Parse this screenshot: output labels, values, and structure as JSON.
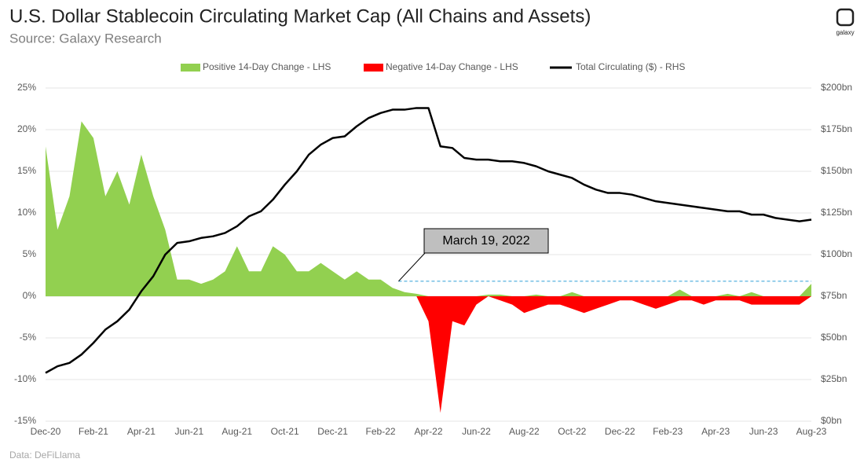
{
  "chart_data": {
    "type": "area-line",
    "title": "U.S. Dollar Stablecoin Circulating Market Cap (All Chains and Assets)",
    "subtitle": "Source: Galaxy Research",
    "source": "Data: DeFiLlama",
    "logo": "galaxy",
    "annotation": {
      "text": "March 19, 2022",
      "value": 1.8
    },
    "categories": [
      "Dec-20",
      null,
      null,
      null,
      "Feb-21",
      null,
      null,
      null,
      "Apr-21",
      null,
      null,
      null,
      "Jun-21",
      null,
      null,
      null,
      "Aug-21",
      null,
      null,
      null,
      "Oct-21",
      null,
      null,
      null,
      "Dec-21",
      null,
      null,
      null,
      "Feb-22",
      null,
      null,
      null,
      "Apr-22",
      null,
      null,
      null,
      "Jun-22",
      null,
      null,
      null,
      "Aug-22",
      null,
      null,
      null,
      "Oct-22",
      null,
      null,
      null,
      "Dec-22",
      null,
      null,
      null,
      "Feb-23",
      null,
      null,
      null,
      "Apr-23",
      null,
      null,
      null,
      "Jun-23",
      null,
      null,
      null,
      "Aug-23"
    ],
    "series": [
      {
        "name": "Positive 14-Day Change - LHS",
        "color": "#92d050",
        "values": [
          18,
          8,
          12,
          21,
          19,
          12,
          15,
          11,
          17,
          12,
          8,
          2,
          2,
          1.5,
          2,
          3,
          6,
          3,
          3,
          6,
          5,
          3,
          3,
          4,
          3,
          2,
          3,
          2,
          2,
          1,
          0.5,
          0.3,
          0,
          0,
          0,
          0,
          0,
          0.2,
          0.2,
          0,
          0,
          0.2,
          0,
          0,
          0.5,
          0,
          0,
          0,
          0,
          0,
          0,
          0,
          0,
          0.8,
          0,
          0,
          0,
          0.3,
          0,
          0.5,
          0,
          0,
          0,
          0,
          1.5
        ]
      },
      {
        "name": "Negative 14-Day Change - LHS",
        "color": "#ff0000",
        "values": [
          0,
          0,
          0,
          0,
          0,
          0,
          0,
          0,
          0,
          0,
          0,
          0,
          0,
          0,
          0,
          0,
          0,
          0,
          0,
          0,
          0,
          0,
          0,
          0,
          0,
          0,
          0,
          0,
          0,
          0,
          0,
          0,
          -3,
          -14,
          -3,
          -3.5,
          -1,
          0,
          -0.5,
          -1,
          -2,
          -1.5,
          -1,
          -1,
          -1.5,
          -2,
          -1.5,
          -1,
          -0.5,
          -0.5,
          -1,
          -1.5,
          -1,
          -0.5,
          -0.5,
          -1,
          -0.5,
          -0.5,
          -0.5,
          -1,
          -1,
          -1,
          -1,
          -1,
          0
        ]
      },
      {
        "name": "Total Circulating ($) - RHS",
        "color": "#000000",
        "axis": "y2",
        "values": [
          29,
          33,
          35,
          40,
          47,
          55,
          60,
          67,
          78,
          87,
          100,
          107,
          108,
          110,
          111,
          113,
          117,
          123,
          126,
          133,
          142,
          150,
          160,
          166,
          170,
          171,
          177,
          182,
          185,
          187,
          187,
          188,
          188,
          165,
          164,
          158,
          157,
          157,
          156,
          156,
          155,
          153,
          150,
          148,
          146,
          142,
          139,
          137,
          137,
          136,
          134,
          132,
          131,
          130,
          129,
          128,
          127,
          126,
          126,
          124,
          124,
          122,
          121,
          120,
          121
        ]
      }
    ],
    "ylim": [
      -15,
      25
    ],
    "yticks": [
      {
        "value": -15,
        "label": "-15%"
      },
      {
        "value": -10,
        "label": "-10%"
      },
      {
        "value": -5,
        "label": "-5%"
      },
      {
        "value": 0,
        "label": "0%"
      },
      {
        "value": 5,
        "label": "5%"
      },
      {
        "value": 10,
        "label": "10%"
      },
      {
        "value": 15,
        "label": "15%"
      },
      {
        "value": 20,
        "label": "20%"
      },
      {
        "value": 25,
        "label": "25%"
      }
    ],
    "y2lim": [
      0,
      200
    ],
    "y2ticks": [
      {
        "value": 0,
        "label": "$0bn"
      },
      {
        "value": 25,
        "label": "$25bn"
      },
      {
        "value": 50,
        "label": "$50bn"
      },
      {
        "value": 75,
        "label": "$75bn"
      },
      {
        "value": 100,
        "label": "$100bn"
      },
      {
        "value": 125,
        "label": "$125bn"
      },
      {
        "value": 150,
        "label": "$150bn"
      },
      {
        "value": 175,
        "label": "$175bn"
      },
      {
        "value": 200,
        "label": "$200bn"
      }
    ],
    "grid": true
  }
}
